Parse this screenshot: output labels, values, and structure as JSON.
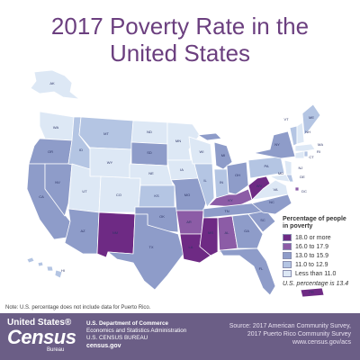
{
  "title": {
    "line1": "2017 Poverty Rate in the",
    "line2": "United States"
  },
  "legend": {
    "title_line1": "Percentage of people",
    "title_line2": "in poverty",
    "items": [
      {
        "label": "18.0 or more",
        "color": "#6e2a84"
      },
      {
        "label": "16.0 to 17.9",
        "color": "#8c5ca6"
      },
      {
        "label": "13.0 to 15.9",
        "color": "#8e9cc9"
      },
      {
        "label": "11.0 to 12.9",
        "color": "#b4c5e3"
      },
      {
        "label": "Less than 11.0",
        "color": "#dde8f5"
      }
    ],
    "us_note": "U.S. percentage is 13.4"
  },
  "state_labels": [
    "WA",
    "OR",
    "CA",
    "NV",
    "ID",
    "MT",
    "WY",
    "UT",
    "AZ",
    "CO",
    "NM",
    "ND",
    "SD",
    "NE",
    "KS",
    "OK",
    "TX",
    "MN",
    "IA",
    "MO",
    "AR",
    "LA",
    "WI",
    "IL",
    "MI",
    "IN",
    "OH",
    "KY",
    "TN",
    "MS",
    "AL",
    "GA",
    "FL",
    "SC",
    "NC",
    "VA",
    "WV",
    "PA",
    "NY",
    "ME",
    "VT",
    "NH",
    "MA",
    "CT",
    "RI",
    "NJ",
    "DE",
    "MD",
    "DC",
    "AK",
    "HI",
    "PR"
  ],
  "footnote": "Note: U.S. percentage does not include data for Puerto Rico.",
  "footer": {
    "logo_line1": "United States®",
    "logo_line2": "Census",
    "logo_line3": "Bureau",
    "dept_line1": "U.S. Department of Commerce",
    "dept_line2": "Economics and Statistics Administration",
    "dept_line3": "U.S. CENSUS BUREAU",
    "dept_line4": "census.gov",
    "source_line1": "Source: 2017 American Community Survey,",
    "source_line2": "2017 Puerto Rico Community Survey",
    "source_line3": "www.census.gov/acs"
  }
}
